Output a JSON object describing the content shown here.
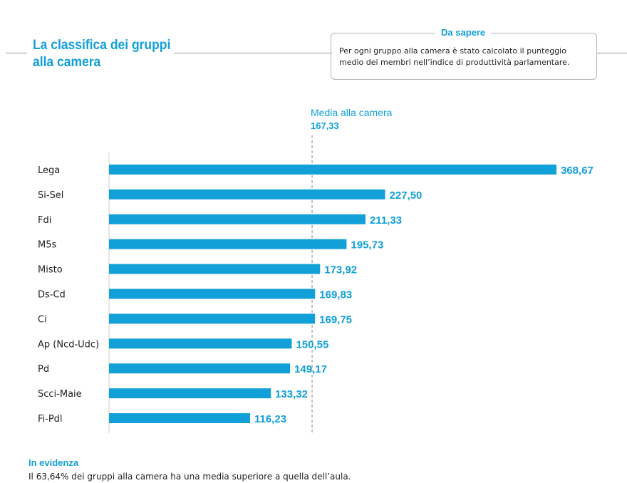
{
  "header": {
    "title_line1": "La classifica dei gruppi",
    "title_line2": "alla camera"
  },
  "info": {
    "label": "Da sapere",
    "text": "Per ogni gruppo alla camera è stato calcolato il punteggio medio dei membri nell’indice di produttività parlamentare."
  },
  "average": {
    "label": "Media alla camera",
    "value_text": "167,33"
  },
  "chart_data": {
    "type": "bar",
    "orientation": "horizontal",
    "title": "La classifica dei gruppi alla camera",
    "categories": [
      "Lega",
      "Si-Sel",
      "Fdi",
      "M5s",
      "Misto",
      "Ds-Cd",
      "Ci",
      "Ap (Ncd-Udc)",
      "Pd",
      "Scci-Maie",
      "Fi-Pdl"
    ],
    "values": [
      368.67,
      227.5,
      211.33,
      195.73,
      173.92,
      169.83,
      169.75,
      150.55,
      149.17,
      133.32,
      116.23
    ],
    "value_labels": [
      "368,67",
      "227,50",
      "211,33",
      "195,73",
      "173,92",
      "169,83",
      "169,75",
      "150,55",
      "149,17",
      "133,32",
      "116,23"
    ],
    "reference_line": {
      "label": "Media alla camera",
      "value": 167.33
    },
    "xlim": [
      0,
      368.67
    ],
    "xlabel": "",
    "ylabel": "",
    "bar_color": "#12a0d8"
  },
  "footer": {
    "title": "In evidenza",
    "text": "Il 63,64% dei gruppi alla camera ha una media superiore a quella dell’aula."
  }
}
